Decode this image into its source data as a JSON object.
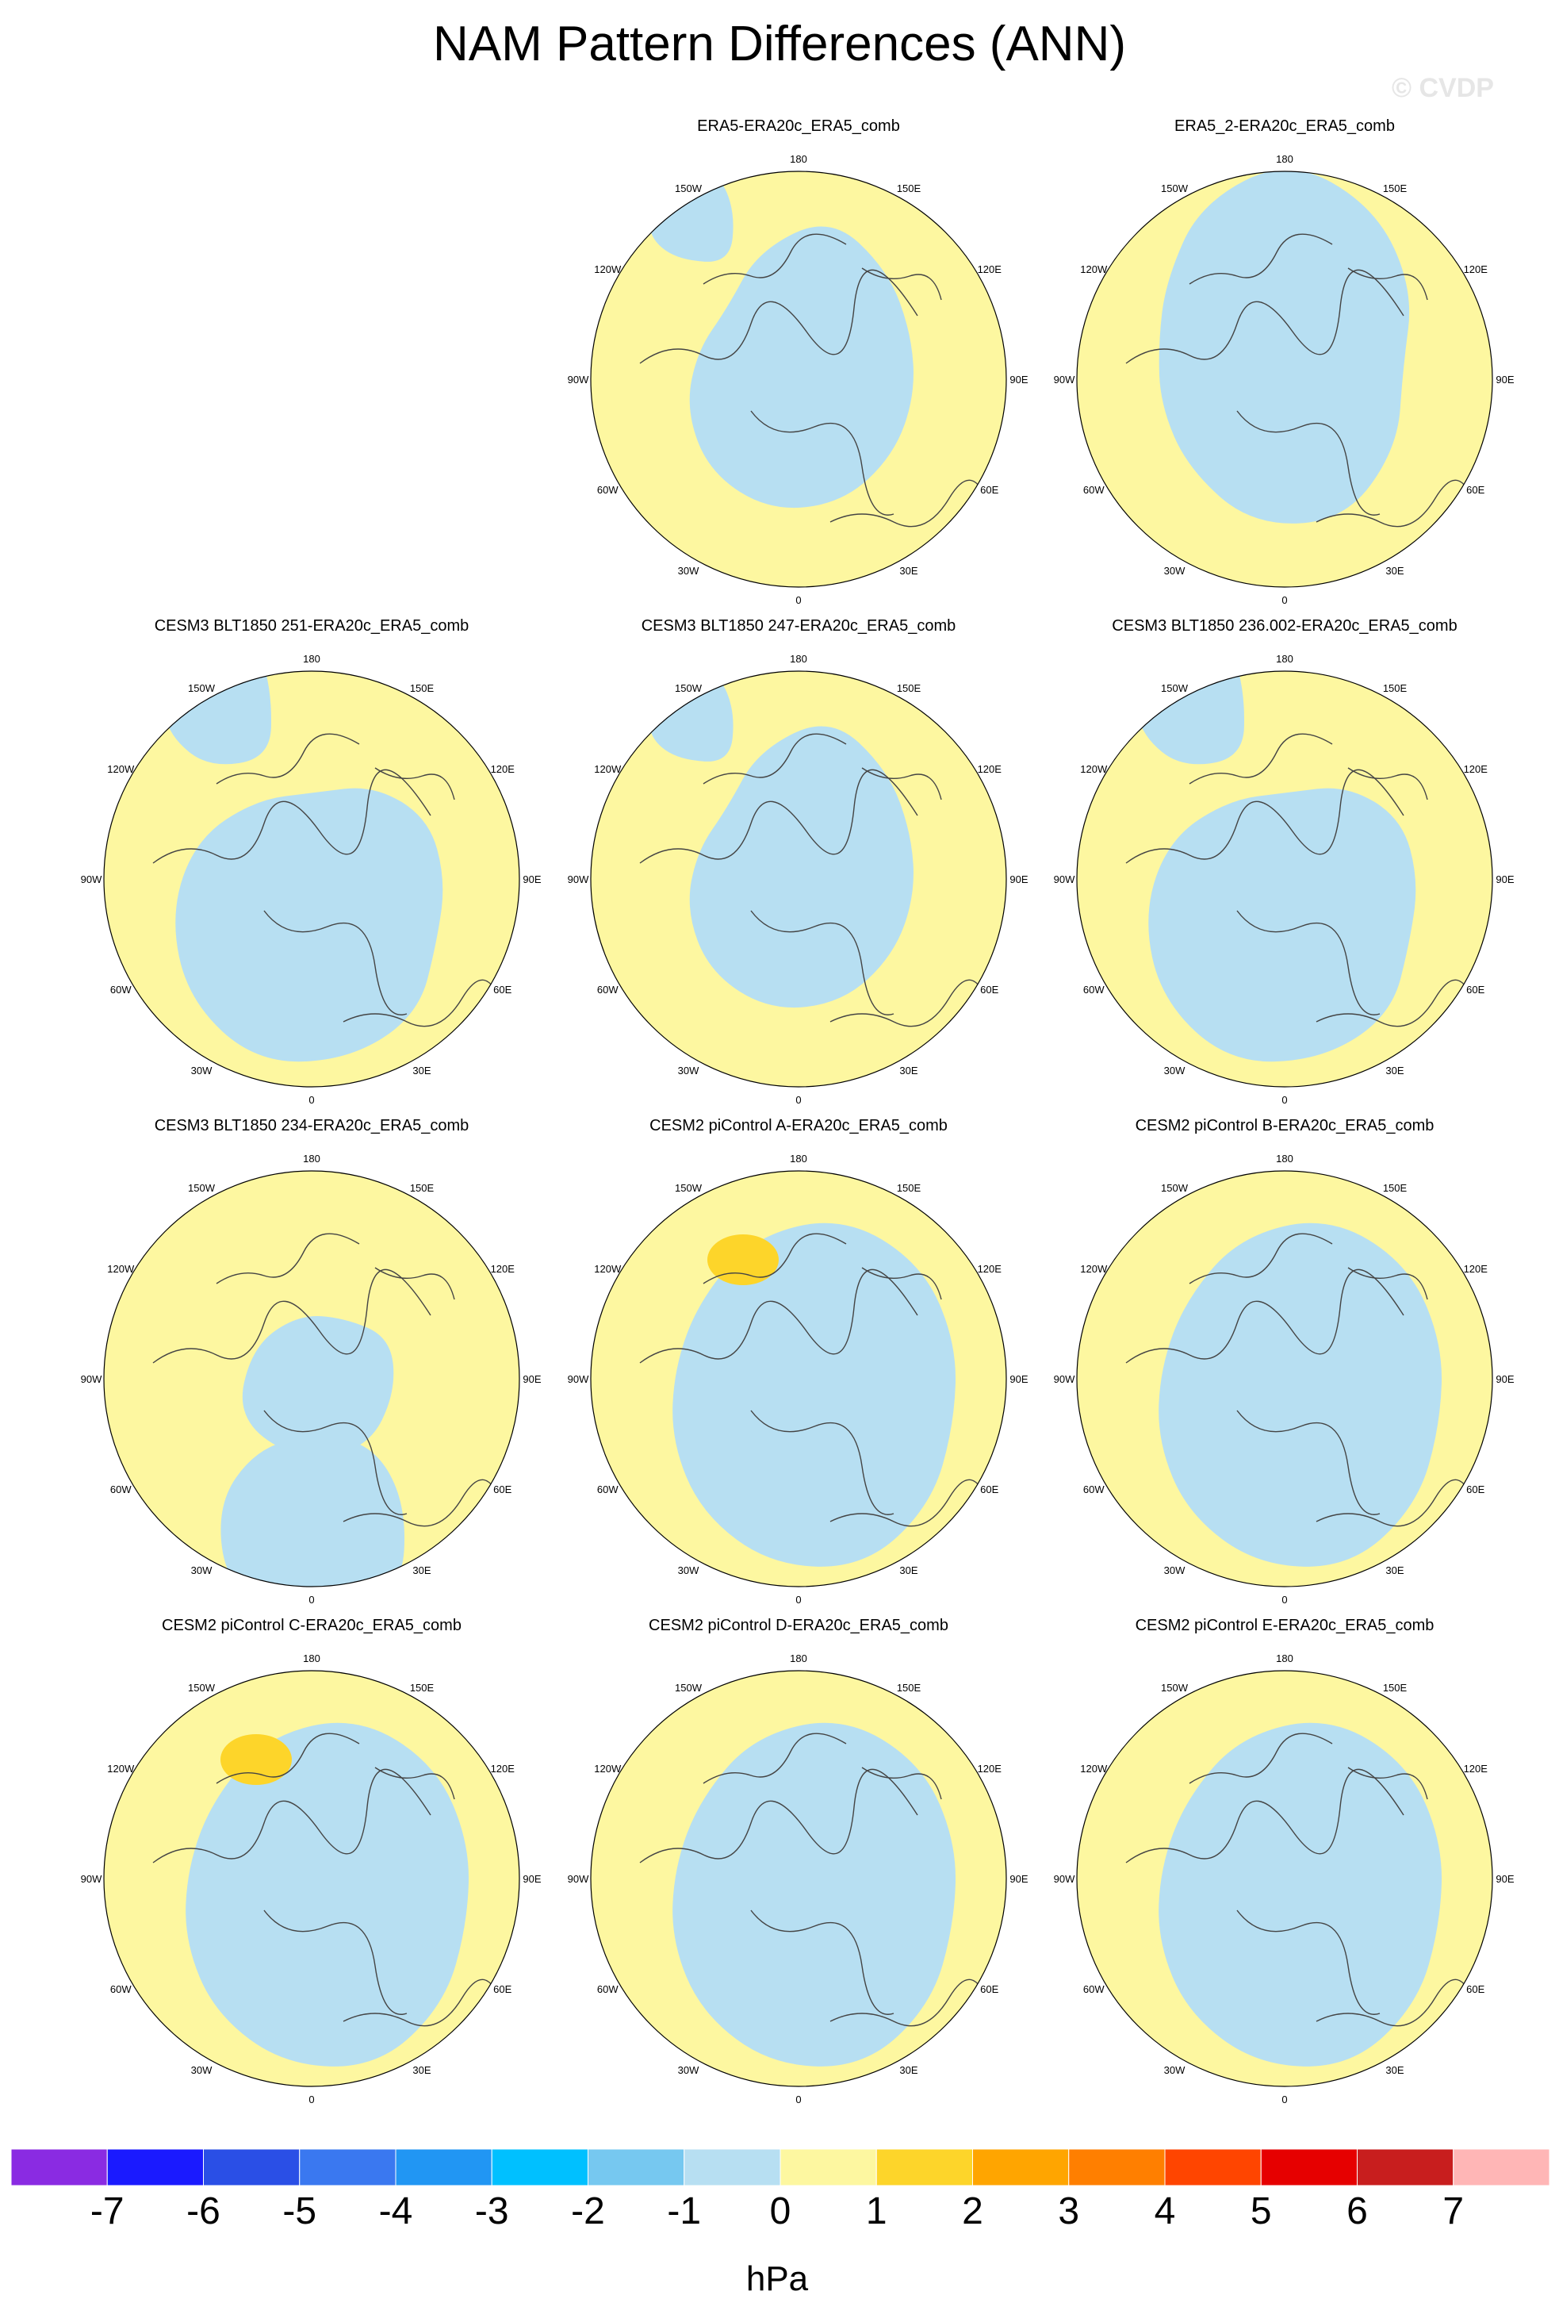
{
  "title": "NAM Pattern Differences (ANN)",
  "watermark": "© CVDP",
  "lon_labels": [
    "180",
    "150E",
    "120E",
    "90E",
    "60E",
    "30E",
    "0",
    "30W",
    "60W",
    "90W",
    "120W",
    "150W"
  ],
  "panels": [
    {
      "title": "ERA5-ERA20c_ERA5_comb",
      "variant": "a",
      "highlight": null
    },
    {
      "title": "ERA5_2-ERA20c_ERA5_comb",
      "variant": "b",
      "highlight": null
    },
    {
      "title": "CESM3 BLT1850 251-ERA20c_ERA5_comb",
      "variant": "c",
      "highlight": null
    },
    {
      "title": "CESM3 BLT1850 247-ERA20c_ERA5_comb",
      "variant": "a",
      "highlight": null
    },
    {
      "title": "CESM3 BLT1850 236.002-ERA20c_ERA5_comb",
      "variant": "c",
      "highlight": null
    },
    {
      "title": "CESM3 BLT1850 234-ERA20c_ERA5_comb",
      "variant": "d",
      "highlight": null
    },
    {
      "title": "CESM2 piControl A-ERA20c_ERA5_comb",
      "variant": "e",
      "highlight": "orange-blob"
    },
    {
      "title": "CESM2 piControl B-ERA20c_ERA5_comb",
      "variant": "e",
      "highlight": null
    },
    {
      "title": "CESM2 piControl C-ERA20c_ERA5_comb",
      "variant": "e",
      "highlight": "orange-blob"
    },
    {
      "title": "CESM2 piControl D-ERA20c_ERA5_comb",
      "variant": "e",
      "highlight": null
    },
    {
      "title": "CESM2 piControl E-ERA20c_ERA5_comb",
      "variant": "e",
      "highlight": null
    }
  ],
  "colorbar": {
    "colors": [
      "#8a2be2",
      "#1a1aff",
      "#2a4fe6",
      "#3a78f0",
      "#2196f3",
      "#00c0ff",
      "#76c8f0",
      "#b7dff2",
      "#fdf7a0",
      "#fdd52a",
      "#ffa500",
      "#ff7f00",
      "#ff4500",
      "#e60000",
      "#c81e1e",
      "#ffb6b6"
    ],
    "ticks": [
      "-7",
      "-6",
      "-5",
      "-4",
      "-3",
      "-2",
      "-1",
      "0",
      "1",
      "2",
      "3",
      "4",
      "5",
      "6",
      "7"
    ],
    "units": "hPa"
  },
  "legend_colors": {
    "negative": "#b7dff2",
    "positive": "#fdf7a0",
    "strong_positive": "#fdd52a"
  }
}
